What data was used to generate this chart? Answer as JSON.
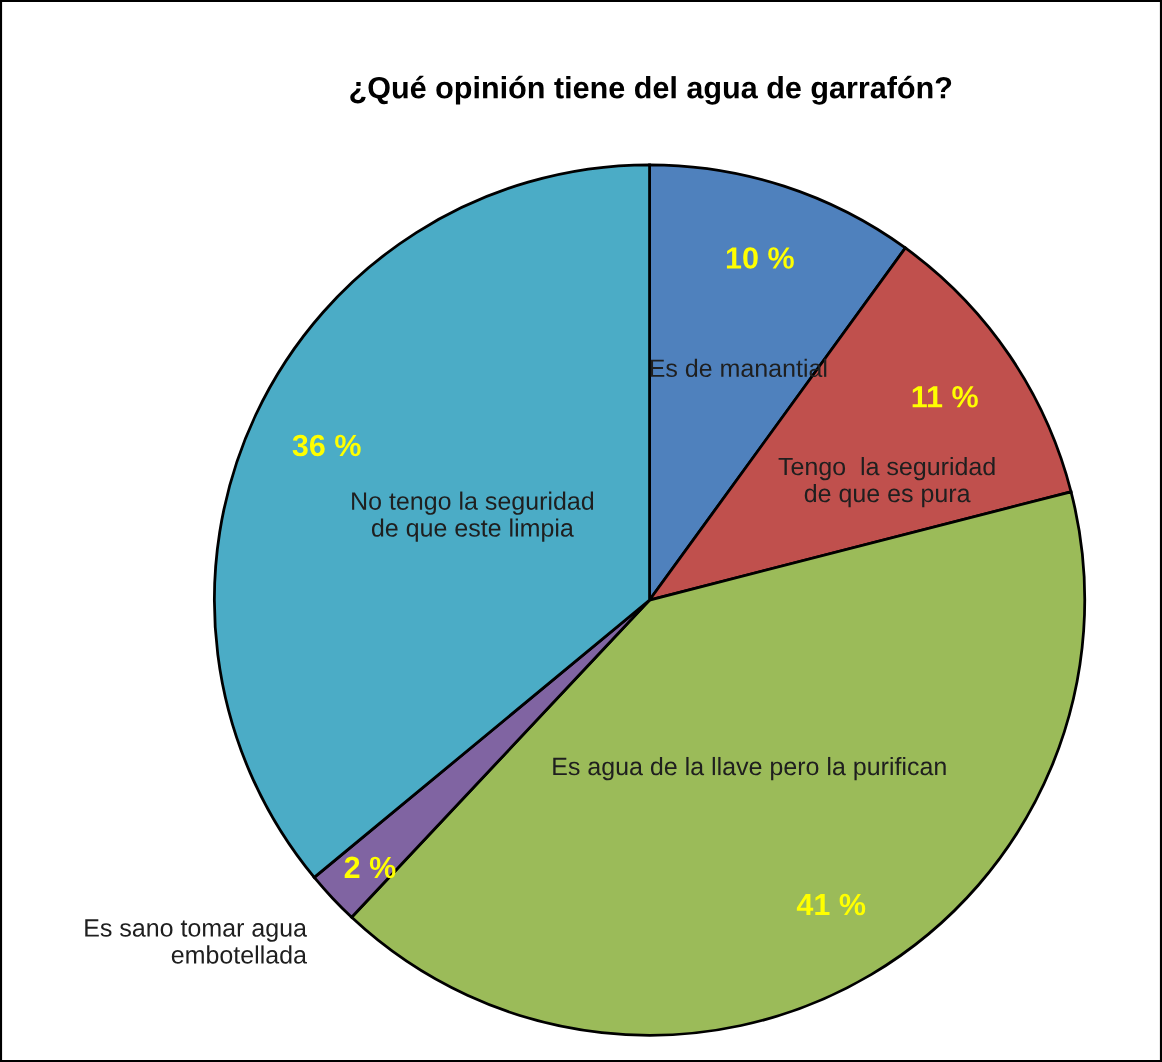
{
  "chart_data": {
    "type": "pie",
    "title": "¿Qué opinión tiene del agua de garrafón?",
    "categories": [
      "Es de manantial",
      "Tengo  la seguridad\nde que es pura",
      "Es agua de la llave pero la purifican",
      "Es sano tomar agua\nembotellada",
      "No tengo la seguridad\nde que este limpia"
    ],
    "values": [
      10,
      11,
      41,
      2,
      36
    ],
    "value_labels": [
      "10 %",
      "11 %",
      "41 %",
      "2 %",
      "36 %"
    ],
    "colors": [
      "#4f81bd",
      "#c0504d",
      "#9bbb59",
      "#8064a2",
      "#4bacc6"
    ]
  }
}
